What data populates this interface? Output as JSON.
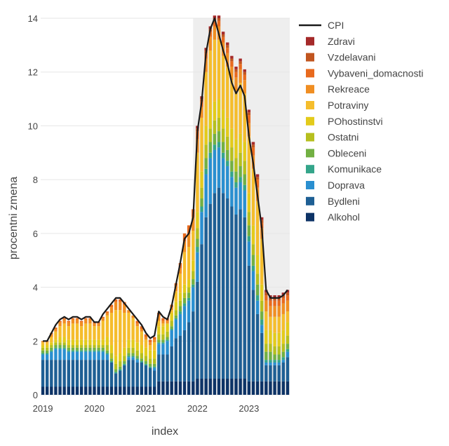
{
  "chart_data": {
    "type": "bar",
    "stacked": true,
    "title": "",
    "xlabel": "index",
    "ylabel": "procentni zmena",
    "ylim": [
      0,
      14
    ],
    "yticks": [
      0,
      2,
      4,
      6,
      8,
      10,
      12,
      14
    ],
    "xticks": [
      "2019",
      "2020",
      "2021",
      "2022",
      "2023"
    ],
    "grid": true,
    "legend_position": "top-right",
    "shaded_region": {
      "from": "2022-01",
      "to": "2023-10"
    },
    "months": [
      "2019-01",
      "2019-02",
      "2019-03",
      "2019-04",
      "2019-05",
      "2019-06",
      "2019-07",
      "2019-08",
      "2019-09",
      "2019-10",
      "2019-11",
      "2019-12",
      "2020-01",
      "2020-02",
      "2020-03",
      "2020-04",
      "2020-05",
      "2020-06",
      "2020-07",
      "2020-08",
      "2020-09",
      "2020-10",
      "2020-11",
      "2020-12",
      "2021-01",
      "2021-02",
      "2021-03",
      "2021-04",
      "2021-05",
      "2021-06",
      "2021-07",
      "2021-08",
      "2021-09",
      "2021-10",
      "2021-11",
      "2021-12",
      "2022-01",
      "2022-02",
      "2022-03",
      "2022-04",
      "2022-05",
      "2022-06",
      "2022-07",
      "2022-08",
      "2022-09",
      "2022-10",
      "2022-11",
      "2022-12",
      "2023-01",
      "2023-02",
      "2023-03",
      "2023-04",
      "2023-05",
      "2023-06",
      "2023-07",
      "2023-08",
      "2023-09",
      "2023-10"
    ],
    "cpi": [
      2.0,
      2.0,
      2.3,
      2.6,
      2.8,
      2.9,
      2.8,
      2.9,
      2.9,
      2.8,
      2.9,
      2.9,
      2.7,
      2.7,
      3.0,
      3.2,
      3.4,
      3.6,
      3.6,
      3.4,
      3.2,
      3.0,
      2.8,
      2.6,
      2.3,
      2.1,
      2.2,
      3.1,
      2.9,
      2.8,
      3.3,
      4.1,
      4.9,
      5.8,
      6.0,
      6.6,
      9.8,
      10.9,
      12.7,
      13.6,
      14.0,
      13.4,
      12.8,
      12.3,
      11.6,
      11.2,
      11.5,
      11.1,
      9.6,
      8.6,
      7.4,
      6.2,
      3.9,
      3.6,
      3.6,
      3.6,
      3.7,
      3.9
    ],
    "series": [
      {
        "name": "Alkohol",
        "color": "#0d3366",
        "values": [
          0.3,
          0.3,
          0.3,
          0.3,
          0.3,
          0.3,
          0.3,
          0.3,
          0.3,
          0.3,
          0.3,
          0.3,
          0.3,
          0.3,
          0.3,
          0.3,
          0.3,
          0.3,
          0.3,
          0.3,
          0.3,
          0.3,
          0.3,
          0.3,
          0.3,
          0.3,
          0.3,
          0.5,
          0.5,
          0.5,
          0.5,
          0.5,
          0.5,
          0.5,
          0.5,
          0.5,
          0.6,
          0.6,
          0.6,
          0.6,
          0.6,
          0.6,
          0.6,
          0.6,
          0.6,
          0.6,
          0.6,
          0.6,
          0.5,
          0.5,
          0.5,
          0.5,
          0.5,
          0.5,
          0.5,
          0.5,
          0.5,
          0.5
        ]
      },
      {
        "name": "Bydleni",
        "color": "#1e5f94",
        "values": [
          1.0,
          1.0,
          1.0,
          1.0,
          1.0,
          1.0,
          1.0,
          1.0,
          1.0,
          1.0,
          1.0,
          1.0,
          1.0,
          1.0,
          1.0,
          1.0,
          0.9,
          0.5,
          0.6,
          0.8,
          1.0,
          1.0,
          0.9,
          0.9,
          0.8,
          0.7,
          0.6,
          1.0,
          1.0,
          1.0,
          1.3,
          1.6,
          1.7,
          1.9,
          2.2,
          2.6,
          3.6,
          5.0,
          6.0,
          6.5,
          6.9,
          7.1,
          6.9,
          6.7,
          6.4,
          6.1,
          6.3,
          6.0,
          4.3,
          3.4,
          2.5,
          1.8,
          0.6,
          0.6,
          0.6,
          0.6,
          0.7,
          0.9
        ]
      },
      {
        "name": "Doprava",
        "color": "#2a8fd0",
        "values": [
          0.2,
          0.2,
          0.3,
          0.4,
          0.4,
          0.4,
          0.3,
          0.3,
          0.3,
          0.3,
          0.3,
          0.3,
          0.3,
          0.3,
          0.3,
          0.2,
          0.0,
          0.0,
          0.0,
          0.0,
          0.1,
          0.1,
          0.1,
          0.0,
          0.0,
          0.0,
          0.1,
          0.4,
          0.4,
          0.5,
          0.6,
          0.7,
          0.8,
          0.9,
          0.8,
          0.9,
          1.1,
          1.2,
          1.6,
          1.7,
          1.6,
          1.5,
          1.3,
          1.2,
          1.1,
          1.0,
          1.0,
          1.0,
          0.9,
          0.7,
          0.5,
          0.3,
          0.1,
          0.1,
          0.1,
          0.1,
          0.1,
          0.2
        ]
      },
      {
        "name": "Komunikace",
        "color": "#34a58a",
        "values": [
          0.05,
          0.05,
          0.05,
          0.05,
          0.05,
          0.05,
          0.05,
          0.05,
          0.05,
          0.05,
          0.05,
          0.05,
          0.05,
          0.05,
          0.05,
          0.05,
          0.05,
          0.05,
          0.05,
          0.05,
          0.05,
          0.05,
          0.05,
          0.05,
          0.05,
          0.05,
          0.05,
          0.05,
          0.05,
          0.05,
          0.05,
          0.05,
          0.1,
          0.1,
          0.1,
          0.1,
          0.2,
          0.2,
          0.2,
          0.2,
          0.2,
          0.2,
          0.2,
          0.2,
          0.2,
          0.2,
          0.2,
          0.2,
          0.2,
          0.2,
          0.2,
          0.2,
          0.1,
          0.1,
          0.1,
          0.1,
          0.1,
          0.1
        ]
      },
      {
        "name": "Obleceni",
        "color": "#72b043",
        "values": [
          0.1,
          0.1,
          0.1,
          0.1,
          0.1,
          0.1,
          0.1,
          0.1,
          0.1,
          0.1,
          0.1,
          0.1,
          0.1,
          0.1,
          0.1,
          0.1,
          0.1,
          0.1,
          0.1,
          0.1,
          0.1,
          0.1,
          0.1,
          0.1,
          0.1,
          0.1,
          0.1,
          0.1,
          0.1,
          0.1,
          0.1,
          0.1,
          0.2,
          0.2,
          0.2,
          0.2,
          0.3,
          0.3,
          0.4,
          0.4,
          0.4,
          0.4,
          0.4,
          0.4,
          0.4,
          0.4,
          0.4,
          0.4,
          0.4,
          0.4,
          0.4,
          0.3,
          0.3,
          0.3,
          0.2,
          0.2,
          0.2,
          0.2
        ]
      },
      {
        "name": "Ostatni",
        "color": "#b6bf1e",
        "values": [
          0.1,
          0.1,
          0.1,
          0.1,
          0.1,
          0.1,
          0.1,
          0.1,
          0.1,
          0.1,
          0.1,
          0.1,
          0.1,
          0.1,
          0.1,
          0.2,
          0.2,
          0.2,
          0.2,
          0.2,
          0.2,
          0.2,
          0.2,
          0.2,
          0.2,
          0.2,
          0.2,
          0.2,
          0.2,
          0.2,
          0.2,
          0.2,
          0.2,
          0.2,
          0.2,
          0.3,
          0.4,
          0.4,
          0.5,
          0.5,
          0.5,
          0.5,
          0.5,
          0.5,
          0.5,
          0.5,
          0.5,
          0.5,
          0.5,
          0.4,
          0.4,
          0.4,
          0.3,
          0.3,
          0.3,
          0.3,
          0.3,
          0.3
        ]
      },
      {
        "name": "POhostinstvi",
        "color": "#e3cb1b",
        "values": [
          0.1,
          0.1,
          0.1,
          0.1,
          0.2,
          0.2,
          0.2,
          0.2,
          0.2,
          0.2,
          0.2,
          0.2,
          0.2,
          0.2,
          0.2,
          0.3,
          0.3,
          0.3,
          0.3,
          0.3,
          0.3,
          0.3,
          0.3,
          0.3,
          0.3,
          0.3,
          0.3,
          0.3,
          0.3,
          0.3,
          0.3,
          0.3,
          0.3,
          0.3,
          0.3,
          0.4,
          0.6,
          0.6,
          0.7,
          0.7,
          0.7,
          0.7,
          0.7,
          0.7,
          0.7,
          0.7,
          0.7,
          0.7,
          0.7,
          0.7,
          0.7,
          0.6,
          0.5,
          0.5,
          0.5,
          0.5,
          0.5,
          0.5
        ]
      },
      {
        "name": "Potraviny",
        "color": "#f5bd2c",
        "values": [
          0.1,
          0.1,
          0.2,
          0.3,
          0.4,
          0.5,
          0.5,
          0.6,
          0.6,
          0.5,
          0.6,
          0.6,
          0.5,
          0.5,
          0.7,
          0.8,
          1.2,
          1.7,
          1.6,
          1.3,
          1.0,
          0.8,
          0.6,
          0.5,
          0.3,
          0.2,
          0.3,
          0.2,
          0.1,
          0.0,
          0.1,
          0.4,
          0.7,
          1.2,
          1.2,
          1.1,
          2.2,
          2.0,
          2.0,
          2.2,
          2.3,
          2.2,
          2.0,
          1.9,
          1.8,
          1.8,
          1.9,
          1.8,
          2.1,
          2.1,
          2.0,
          1.7,
          0.7,
          0.5,
          0.6,
          0.6,
          0.6,
          0.4
        ]
      },
      {
        "name": "Rekreace",
        "color": "#f08e22",
        "values": [
          0.05,
          0.05,
          0.1,
          0.1,
          0.15,
          0.15,
          0.15,
          0.15,
          0.15,
          0.15,
          0.15,
          0.15,
          0.1,
          0.1,
          0.1,
          0.1,
          0.2,
          0.3,
          0.3,
          0.3,
          0.1,
          0.1,
          0.1,
          0.1,
          0.1,
          0.1,
          0.1,
          0.2,
          0.1,
          0.1,
          0.1,
          0.2,
          0.2,
          0.4,
          0.5,
          0.5,
          0.5,
          0.4,
          0.5,
          0.5,
          0.5,
          0.5,
          0.5,
          0.5,
          0.5,
          0.5,
          0.5,
          0.5,
          0.5,
          0.5,
          0.5,
          0.4,
          0.4,
          0.4,
          0.4,
          0.4,
          0.4,
          0.4
        ]
      },
      {
        "name": "Vybaveni_domacnosti",
        "color": "#e86a1e",
        "values": [
          0.0,
          0.0,
          0.05,
          0.05,
          0.05,
          0.05,
          0.05,
          0.05,
          0.05,
          0.05,
          0.05,
          0.05,
          0.05,
          0.05,
          0.05,
          0.05,
          0.1,
          0.1,
          0.1,
          0.1,
          0.0,
          0.0,
          0.1,
          0.1,
          0.1,
          0.1,
          0.1,
          0.1,
          0.1,
          0.1,
          0.1,
          0.1,
          0.2,
          0.3,
          0.3,
          0.3,
          0.3,
          0.2,
          0.2,
          0.2,
          0.2,
          0.2,
          0.2,
          0.2,
          0.2,
          0.2,
          0.2,
          0.2,
          0.3,
          0.3,
          0.3,
          0.2,
          0.2,
          0.2,
          0.2,
          0.2,
          0.2,
          0.2
        ]
      },
      {
        "name": "Vzdelavani",
        "color": "#c1551f",
        "values": [
          0.0,
          0.0,
          0.0,
          0.0,
          0.0,
          0.0,
          0.0,
          0.0,
          0.0,
          0.0,
          0.0,
          0.0,
          0.0,
          0.0,
          0.0,
          0.0,
          0.0,
          0.0,
          0.0,
          0.0,
          0.0,
          0.0,
          0.0,
          0.0,
          0.0,
          0.0,
          0.0,
          0.0,
          0.0,
          0.0,
          0.0,
          0.0,
          0.0,
          0.0,
          0.0,
          0.0,
          0.1,
          0.1,
          0.1,
          0.1,
          0.1,
          0.1,
          0.1,
          0.1,
          0.1,
          0.1,
          0.1,
          0.1,
          0.1,
          0.1,
          0.1,
          0.1,
          0.1,
          0.1,
          0.1,
          0.1,
          0.1,
          0.1
        ]
      },
      {
        "name": "Zdravi",
        "color": "#a52a2a",
        "values": [
          0.0,
          0.0,
          0.0,
          0.0,
          0.0,
          0.0,
          0.0,
          0.0,
          0.0,
          0.0,
          0.0,
          0.0,
          0.0,
          0.0,
          0.0,
          0.0,
          0.0,
          0.0,
          0.0,
          0.0,
          0.0,
          0.0,
          0.0,
          0.0,
          0.0,
          0.0,
          0.0,
          0.0,
          0.0,
          0.0,
          0.0,
          0.0,
          0.0,
          0.0,
          0.0,
          0.0,
          0.1,
          0.1,
          0.1,
          0.1,
          0.1,
          0.1,
          0.1,
          0.1,
          0.1,
          0.1,
          0.1,
          0.1,
          0.1,
          0.1,
          0.1,
          0.1,
          0.1,
          0.1,
          0.1,
          0.1,
          0.1,
          0.1
        ]
      }
    ],
    "legend": [
      "CPI",
      "Zdravi",
      "Vzdelavani",
      "Vybaveni_domacnosti",
      "Rekreace",
      "Potraviny",
      "POhostinstvi",
      "Ostatni",
      "Obleceni",
      "Komunikace",
      "Doprava",
      "Bydleni",
      "Alkohol"
    ],
    "cpi_color": "#1a1a1a"
  }
}
